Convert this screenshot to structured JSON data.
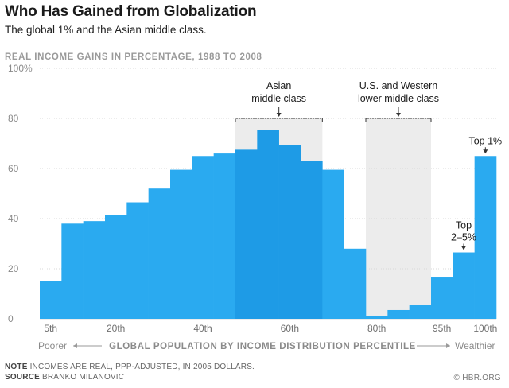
{
  "header": {
    "title": "Who Has Gained from Globalization",
    "subtitle": "The global 1% and the Asian middle class."
  },
  "chart_data": {
    "type": "bar",
    "title": "REAL INCOME GAINS IN PERCENTAGE, 1988 TO 2008",
    "xlabel": "GLOBAL POPULATION BY INCOME DISTRIBUTION PERCENTILE",
    "xlabel_left": "Poorer",
    "xlabel_right": "Wealthier",
    "ylim": [
      0,
      100
    ],
    "yticks": [
      "0",
      "20",
      "40",
      "60",
      "80",
      "100%"
    ],
    "ytick_values": [
      0,
      20,
      40,
      60,
      80,
      100
    ],
    "xtick_labels": [
      "5th",
      "20th",
      "40th",
      "60th",
      "80th",
      "95th",
      "100th"
    ],
    "xtick_bar_index": [
      0,
      3,
      7,
      11,
      15,
      18,
      20
    ],
    "values": [
      15,
      38,
      39,
      41.5,
      46.5,
      52,
      59.5,
      65,
      66,
      67.5,
      75.5,
      69.5,
      63,
      59.5,
      28,
      1,
      3.5,
      5.5,
      16.5,
      26.5,
      65
    ],
    "highlight_groups": [
      {
        "label": "Asian\nmiddle class",
        "start_index": 9,
        "end_index": 12
      },
      {
        "label": "U.S. and Western\nlower middle class",
        "start_index": 15,
        "end_index": 17
      }
    ],
    "annotations": [
      {
        "label": "Top\n2–5%",
        "bar_index": 19
      },
      {
        "label": "Top 1%",
        "bar_index": 20
      }
    ]
  },
  "colors": {
    "bar": "#2aaaf0",
    "bar_highlight": "#1e9be6",
    "shade": "#ececec",
    "grid": "#d9d9d9"
  },
  "footer": {
    "note_label": "NOTE",
    "note_text": "INCOMES ARE REAL, PPP-ADJUSTED, IN 2005 DOLLARS.",
    "source_label": "SOURCE",
    "source_text": "BRANKO MILANOVIC",
    "credit": "© HBR.ORG"
  }
}
